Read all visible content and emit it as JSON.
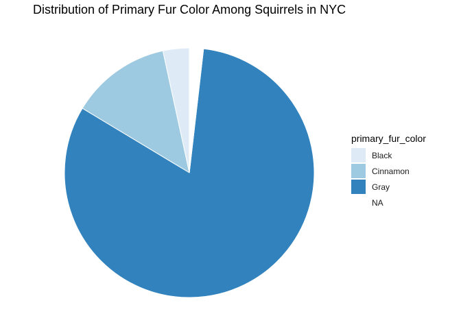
{
  "chart_data": {
    "type": "pie",
    "title": "Distribution of Primary Fur Color Among Squirrels in NYC",
    "legend_title": "primary_fur_color",
    "legend_position": "right",
    "categories": [
      "Black",
      "Cinnamon",
      "Gray",
      "NA"
    ],
    "values": [
      103,
      392,
      2473,
      55
    ],
    "colors": [
      "#DEEBF7",
      "#9ECAE1",
      "#3182BD",
      "#FFFFFF"
    ],
    "start_angle_deg": 0,
    "direction": "counterclockwise"
  }
}
